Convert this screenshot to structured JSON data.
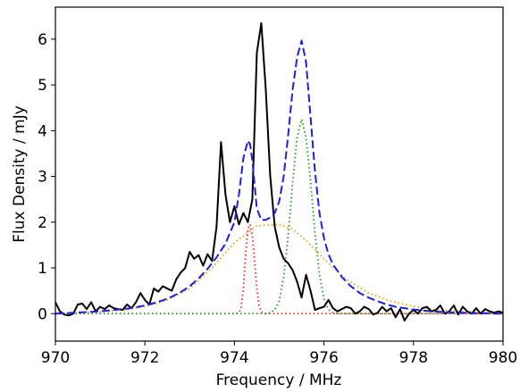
{
  "chart_data": {
    "type": "line",
    "title": "",
    "xlabel": "Frequency / MHz",
    "ylabel": "Flux Density / mJy",
    "xlim": [
      970,
      980
    ],
    "ylim": [
      -0.6,
      6.7
    ],
    "x_ticks": [
      970,
      972,
      974,
      976,
      978,
      980
    ],
    "x_tick_labels": [
      "970",
      "972",
      "974",
      "976",
      "978",
      "980"
    ],
    "y_ticks": [
      0,
      1,
      2,
      3,
      4,
      5,
      6
    ],
    "y_tick_labels": [
      "0",
      "1",
      "2",
      "3",
      "4",
      "5",
      "6"
    ],
    "grid": false,
    "legend": "none",
    "series": [
      {
        "color": "#000000",
        "style": "solid",
        "x": [
          970.0,
          970.1,
          970.2,
          970.3,
          970.4,
          970.5,
          970.6,
          970.7,
          970.8,
          970.9,
          971.0,
          971.1,
          971.2,
          971.3,
          971.4,
          971.5,
          971.6,
          971.7,
          971.8,
          971.9,
          972.0,
          972.1,
          972.2,
          972.3,
          972.4,
          972.5,
          972.6,
          972.7,
          972.8,
          972.9,
          973.0,
          973.1,
          973.2,
          973.3,
          973.4,
          973.5,
          973.6,
          973.7,
          973.8,
          973.9,
          974.0,
          974.1,
          974.2,
          974.3,
          974.4,
          974.5,
          974.6,
          974.7,
          974.8,
          974.9,
          975.0,
          975.1,
          975.2,
          975.3,
          975.4,
          975.5,
          975.6,
          975.7,
          975.8,
          975.9,
          976.0,
          976.1,
          976.2,
          976.3,
          976.4,
          976.5,
          976.6,
          976.7,
          976.8,
          976.9,
          977.0,
          977.1,
          977.2,
          977.3,
          977.4,
          977.5,
          977.6,
          977.7,
          977.8,
          977.9,
          978.0,
          978.1,
          978.2,
          978.3,
          978.4,
          978.5,
          978.6,
          978.7,
          978.8,
          978.9,
          979.0,
          979.1,
          979.2,
          979.3,
          979.4,
          979.5,
          979.6,
          979.7,
          979.8,
          979.9,
          980.0
        ],
        "y": [
          0.25,
          0.05,
          -0.02,
          -0.04,
          0.0,
          0.2,
          0.22,
          0.1,
          0.25,
          0.05,
          0.15,
          0.1,
          0.18,
          0.12,
          0.1,
          0.08,
          0.2,
          0.12,
          0.25,
          0.45,
          0.3,
          0.2,
          0.55,
          0.48,
          0.6,
          0.55,
          0.5,
          0.75,
          0.9,
          1.0,
          1.35,
          1.2,
          1.28,
          1.05,
          1.3,
          1.15,
          1.9,
          3.75,
          2.6,
          2.0,
          2.35,
          1.95,
          2.2,
          2.0,
          2.5,
          5.7,
          6.35,
          4.9,
          3.0,
          1.9,
          1.45,
          1.2,
          1.1,
          0.95,
          0.7,
          0.35,
          0.85,
          0.5,
          0.08,
          0.12,
          0.15,
          0.3,
          0.12,
          0.05,
          0.1,
          0.15,
          0.12,
          0.0,
          0.05,
          0.15,
          0.1,
          -0.02,
          0.02,
          0.15,
          0.05,
          0.12,
          -0.08,
          0.1,
          -0.15,
          0.0,
          0.08,
          0.0,
          0.12,
          0.15,
          0.05,
          0.08,
          0.18,
          0.0,
          0.05,
          0.18,
          -0.02,
          0.15,
          0.05,
          0.0,
          0.12,
          0.0,
          0.1,
          0.05,
          0.02,
          0.05,
          0.02
        ]
      },
      {
        "color": "#1f1fe0",
        "style": "dashed",
        "x": [
          970.0,
          970.2,
          970.4,
          970.6,
          970.8,
          971.0,
          971.2,
          971.4,
          971.6,
          971.8,
          972.0,
          972.2,
          972.4,
          972.6,
          972.8,
          973.0,
          973.2,
          973.4,
          973.6,
          973.8,
          974.0,
          974.1,
          974.2,
          974.3,
          974.35,
          974.4,
          974.5,
          974.6,
          974.7,
          974.8,
          974.9,
          975.0,
          975.1,
          975.2,
          975.3,
          975.4,
          975.5,
          975.6,
          975.7,
          975.8,
          975.9,
          976.0,
          976.1,
          976.2,
          976.4,
          976.6,
          976.8,
          977.0,
          977.2,
          977.4,
          977.6,
          977.8,
          978.0,
          978.2,
          978.4,
          978.6,
          978.8,
          979.0,
          979.2,
          979.4,
          979.6,
          979.8,
          980.0
        ],
        "y": [
          0.0,
          0.01,
          0.02,
          0.03,
          0.04,
          0.05,
          0.07,
          0.09,
          0.11,
          0.14,
          0.18,
          0.23,
          0.29,
          0.37,
          0.47,
          0.6,
          0.77,
          0.98,
          1.23,
          1.53,
          2.0,
          2.6,
          3.4,
          3.78,
          3.7,
          3.35,
          2.3,
          2.05,
          2.05,
          2.1,
          2.2,
          2.45,
          3.0,
          3.9,
          4.9,
          5.6,
          5.97,
          5.5,
          4.3,
          3.1,
          2.2,
          1.65,
          1.3,
          1.08,
          0.8,
          0.6,
          0.45,
          0.35,
          0.27,
          0.2,
          0.15,
          0.12,
          0.09,
          0.07,
          0.05,
          0.04,
          0.03,
          0.02,
          0.02,
          0.01,
          0.01,
          0.0,
          0.0
        ]
      },
      {
        "color": "#e8a000",
        "style": "dotted",
        "x": [
          970.0,
          970.5,
          971.0,
          971.5,
          972.0,
          972.5,
          973.0,
          973.5,
          974.0,
          974.5,
          975.0,
          975.3,
          975.6,
          976.0,
          976.5,
          977.0,
          977.5,
          978.0,
          978.5,
          979.0,
          979.5,
          980.0
        ],
        "y": [
          0.0,
          0.02,
          0.04,
          0.08,
          0.15,
          0.3,
          0.55,
          1.0,
          1.55,
          1.92,
          1.95,
          1.85,
          1.6,
          1.2,
          0.75,
          0.45,
          0.27,
          0.16,
          0.09,
          0.05,
          0.02,
          0.0
        ]
      },
      {
        "color": "#ff1f1f",
        "style": "dotted",
        "x": [
          970.0,
          973.9,
          974.0,
          974.1,
          974.15,
          974.2,
          974.25,
          974.3,
          974.35,
          974.4,
          974.45,
          974.5,
          974.55,
          974.6,
          974.7,
          974.8,
          980.0
        ],
        "y": [
          0.0,
          0.0,
          0.0,
          0.02,
          0.12,
          0.55,
          1.3,
          1.85,
          1.95,
          1.7,
          1.15,
          0.55,
          0.18,
          0.04,
          0.0,
          0.0,
          0.0
        ]
      },
      {
        "color": "#1a9a1a",
        "style": "dotted",
        "x": [
          970.0,
          974.7,
          974.8,
          974.9,
          975.0,
          975.1,
          975.2,
          975.3,
          975.4,
          975.5,
          975.6,
          975.7,
          975.8,
          975.9,
          976.0,
          976.1,
          976.2,
          976.3,
          980.0
        ],
        "y": [
          0.0,
          0.0,
          0.02,
          0.08,
          0.28,
          0.8,
          1.7,
          2.85,
          3.85,
          4.25,
          3.85,
          2.9,
          1.75,
          0.85,
          0.32,
          0.09,
          0.02,
          0.0,
          0.0
        ]
      }
    ]
  }
}
